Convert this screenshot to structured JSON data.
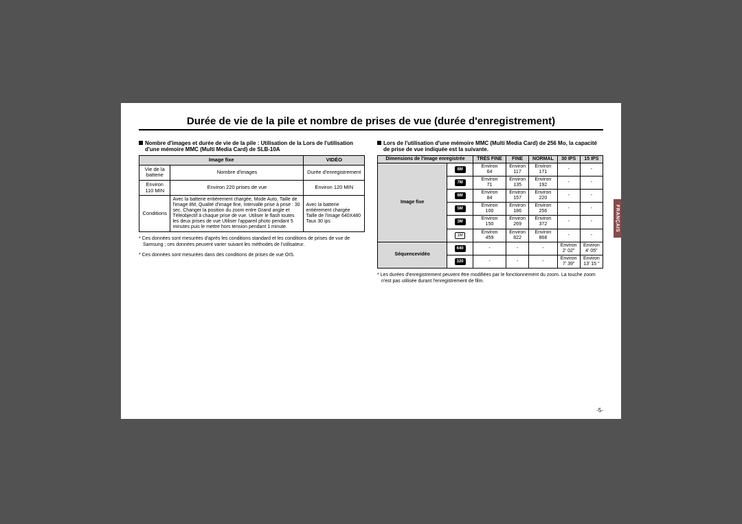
{
  "sidetab": "FRANÇAIS",
  "title": "Durée de vie de la pile et nombre de prises de vue (durée d'enregistrement)",
  "left": {
    "heading": "Nombre d'images et durée de vie de la pile : Utilisation de la Lors de l'utilisation d'une mémoire MMC (Multi Media Card) de SLB-10A",
    "headers": {
      "imagefixe": "Image fixe",
      "video": "VIDÉO"
    },
    "row1": {
      "a": "Vie de la batterie",
      "b": "Nombre d'images",
      "c": "Durée d'enregistrement"
    },
    "row2": {
      "a": "Environ 110 MIN",
      "b": "Environ 220 prises de vue",
      "c": "Environ 120 MIN"
    },
    "row3": {
      "label": "Conditions",
      "b": "Avec la batterie entièrement chargée, Mode Auto, Taille de l'image 8M, Qualité d'image fine, Intervalle prise à prise : 30 sec. Changer la position du zoom entre Grand angle et Téléobjectif à chaque prise de vue. Utiliser le flash toutes les deux prises de vue Utiliser l'appareil photo pendant 5 minutes puis le mettre hors tension pendant 1 minute.",
      "c": "Avec la batterie entièrement chargée Taille de l'image 640X480 Taux 30 ips"
    },
    "note1": "* Ces données sont mesurées d'après les conditions standard et les conditions de prises de vue de Samsung ; ces données peuvent varier suivant les méthodes de l'utilisateur.",
    "note2": "* Ces données sont mesurées dans des conditions de prises de vue OIS."
  },
  "right": {
    "heading": "Lors de l'utilisation d'une mémoire MMC (Multi Media Card) de 256 Mo, la capacité de prise de vue indiquée est la suivante.",
    "headers": {
      "dim": "Dimensions de l'image enregistrée",
      "tfine": "TRÈS FINE",
      "fine": "FINE",
      "normal": "NORMAL",
      "ips30": "30 IPS",
      "ips15": "15 IPS"
    },
    "groups": {
      "imagefixe": "Image fixe",
      "video": "Séquencevidéo"
    },
    "approx": "Environ",
    "rows_fixe": [
      {
        "icon": "8M",
        "tfine": "64",
        "fine": "117",
        "normal": "171"
      },
      {
        "icon": "7M",
        "tfine": "71",
        "fine": "135",
        "normal": "192"
      },
      {
        "icon": "6M",
        "tfine": "84",
        "fine": "157",
        "normal": "220"
      },
      {
        "icon": "5M",
        "tfine": "100",
        "fine": "186",
        "normal": "256"
      },
      {
        "icon": "3M",
        "tfine": "150",
        "fine": "269",
        "normal": "372"
      },
      {
        "icon": "1M",
        "tfine": "459",
        "fine": "822",
        "normal": "868",
        "outline": true
      }
    ],
    "rows_video": [
      {
        "icon": "640",
        "ips30": "2' 02\"",
        "ips15": "4' 05\""
      },
      {
        "icon": "320",
        "ips30": "7' 39\"",
        "ips15": "13' 15 \""
      }
    ],
    "note": "* Les durées d'enregistrement peuvent être modifiées par le fonctionnement du zoom. La touche zoom n'est pas utilisée durant l'enregistrement de film."
  },
  "pagenum": "-5-"
}
